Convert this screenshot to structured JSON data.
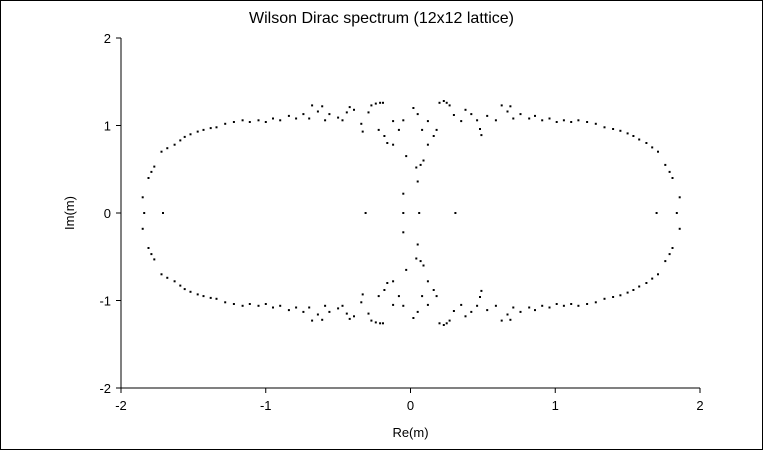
{
  "chart_data": {
    "type": "scatter",
    "title": "Wilson Dirac spectrum (12x12 lattice)",
    "xlabel": "Re(m)",
    "ylabel": "Im(m)",
    "xlim": [
      -2,
      2
    ],
    "ylim": [
      -2,
      2
    ],
    "x_ticks": [
      "-2",
      "-1",
      "0",
      "1",
      "2"
    ],
    "y_ticks": [
      "2",
      "1",
      "0",
      "-1",
      "-2"
    ],
    "grid": false,
    "legend": "none",
    "marker_color": "#000000",
    "series": [
      {
        "points": [
          [
            -1.85,
            0.18
          ],
          [
            -1.84,
            0.0
          ],
          [
            -1.85,
            -0.18
          ],
          [
            -1.81,
            0.4
          ],
          [
            -1.79,
            0.47
          ],
          [
            -1.77,
            0.53
          ],
          [
            -1.72,
            0.7
          ],
          [
            -1.68,
            0.74
          ],
          [
            -1.63,
            0.78
          ],
          [
            -1.59,
            0.83
          ],
          [
            -1.56,
            0.87
          ],
          [
            -1.52,
            0.9
          ],
          [
            -1.47,
            0.93
          ],
          [
            -1.43,
            0.95
          ],
          [
            -1.38,
            0.97
          ],
          [
            -1.34,
            0.98
          ],
          [
            -1.28,
            1.02
          ],
          [
            -1.22,
            1.04
          ],
          [
            -1.16,
            1.06
          ],
          [
            -1.11,
            1.04
          ],
          [
            -1.05,
            1.06
          ],
          [
            -1.0,
            1.04
          ],
          [
            -0.95,
            1.08
          ],
          [
            -0.9,
            1.06
          ],
          [
            -0.84,
            1.11
          ],
          [
            -0.79,
            1.08
          ],
          [
            -0.74,
            1.13
          ],
          [
            -0.7,
            1.08
          ],
          [
            -0.68,
            1.23
          ],
          [
            -0.64,
            1.16
          ],
          [
            -0.61,
            1.22
          ],
          [
            -0.59,
            1.06
          ],
          [
            -0.56,
            1.13
          ],
          [
            -0.5,
            1.09
          ],
          [
            -0.47,
            1.06
          ],
          [
            -0.44,
            1.15
          ],
          [
            -0.42,
            1.21
          ],
          [
            -0.39,
            1.18
          ],
          [
            -0.34,
            1.02
          ],
          [
            -0.33,
            0.93
          ],
          [
            -0.29,
            1.15
          ],
          [
            -0.27,
            1.23
          ],
          [
            -0.24,
            1.25
          ],
          [
            -0.21,
            1.26
          ],
          [
            -0.19,
            1.26
          ],
          [
            -0.22,
            0.95
          ],
          [
            -0.18,
            0.88
          ],
          [
            -0.16,
            0.8
          ],
          [
            -0.12,
            1.05
          ],
          [
            -0.12,
            0.78
          ],
          [
            -0.08,
            0.95
          ],
          [
            -0.05,
            1.06
          ],
          [
            -0.03,
            0.65
          ],
          [
            -1.71,
            0.0
          ],
          [
            -0.31,
            0.0
          ],
          [
            -0.05,
            0.22
          ],
          [
            -0.05,
            0.0
          ],
          [
            -0.05,
            -0.22
          ],
          [
            0.02,
            1.2
          ],
          [
            0.05,
            1.13
          ],
          [
            0.04,
            0.52
          ],
          [
            0.05,
            0.36
          ],
          [
            0.06,
            0.0
          ],
          [
            0.07,
            0.55
          ],
          [
            0.04,
            -0.52
          ],
          [
            0.05,
            -0.36
          ],
          [
            0.07,
            -0.55
          ],
          [
            0.08,
            0.95
          ],
          [
            0.09,
            0.6
          ],
          [
            0.12,
            0.78
          ],
          [
            0.12,
            1.05
          ],
          [
            0.16,
            0.88
          ],
          [
            0.18,
            0.95
          ],
          [
            0.2,
            1.26
          ],
          [
            0.23,
            1.28
          ],
          [
            0.25,
            1.26
          ],
          [
            0.27,
            1.23
          ],
          [
            0.3,
            1.12
          ],
          [
            0.35,
            1.05
          ],
          [
            0.38,
            1.18
          ],
          [
            0.42,
            1.13
          ],
          [
            0.46,
            1.06
          ],
          [
            0.48,
            0.96
          ],
          [
            0.49,
            0.89
          ],
          [
            0.53,
            1.11
          ],
          [
            0.59,
            1.06
          ],
          [
            0.63,
            1.23
          ],
          [
            0.67,
            1.16
          ],
          [
            0.69,
            1.22
          ],
          [
            0.71,
            1.08
          ],
          [
            0.76,
            1.13
          ],
          [
            0.82,
            1.08
          ],
          [
            0.86,
            1.11
          ],
          [
            0.91,
            1.06
          ],
          [
            0.96,
            1.08
          ],
          [
            1.01,
            1.04
          ],
          [
            1.06,
            1.06
          ],
          [
            1.11,
            1.04
          ],
          [
            1.16,
            1.06
          ],
          [
            1.22,
            1.04
          ],
          [
            1.28,
            1.02
          ],
          [
            1.34,
            0.98
          ],
          [
            1.4,
            0.96
          ],
          [
            1.45,
            0.94
          ],
          [
            1.5,
            0.91
          ],
          [
            1.54,
            0.88
          ],
          [
            1.58,
            0.84
          ],
          [
            1.63,
            0.8
          ],
          [
            1.67,
            0.75
          ],
          [
            1.71,
            0.7
          ],
          [
            1.76,
            0.55
          ],
          [
            1.79,
            0.47
          ],
          [
            1.81,
            0.4
          ],
          [
            1.86,
            0.18
          ],
          [
            1.84,
            0.0
          ],
          [
            1.86,
            -0.18
          ],
          [
            1.7,
            0.0
          ],
          [
            0.31,
            0.0
          ],
          [
            -1.81,
            -0.4
          ],
          [
            -1.79,
            -0.47
          ],
          [
            -1.77,
            -0.53
          ],
          [
            -1.72,
            -0.7
          ],
          [
            -1.68,
            -0.74
          ],
          [
            -1.63,
            -0.78
          ],
          [
            -1.59,
            -0.83
          ],
          [
            -1.56,
            -0.87
          ],
          [
            -1.52,
            -0.9
          ],
          [
            -1.47,
            -0.93
          ],
          [
            -1.43,
            -0.95
          ],
          [
            -1.38,
            -0.97
          ],
          [
            -1.34,
            -0.98
          ],
          [
            -1.28,
            -1.02
          ],
          [
            -1.22,
            -1.04
          ],
          [
            -1.16,
            -1.06
          ],
          [
            -1.11,
            -1.04
          ],
          [
            -1.05,
            -1.06
          ],
          [
            -1.0,
            -1.04
          ],
          [
            -0.95,
            -1.08
          ],
          [
            -0.9,
            -1.06
          ],
          [
            -0.84,
            -1.11
          ],
          [
            -0.79,
            -1.08
          ],
          [
            -0.74,
            -1.13
          ],
          [
            -0.7,
            -1.08
          ],
          [
            -0.68,
            -1.23
          ],
          [
            -0.64,
            -1.16
          ],
          [
            -0.61,
            -1.22
          ],
          [
            -0.59,
            -1.06
          ],
          [
            -0.56,
            -1.13
          ],
          [
            -0.5,
            -1.09
          ],
          [
            -0.47,
            -1.06
          ],
          [
            -0.44,
            -1.15
          ],
          [
            -0.42,
            -1.21
          ],
          [
            -0.39,
            -1.18
          ],
          [
            -0.34,
            -1.02
          ],
          [
            -0.33,
            -0.93
          ],
          [
            -0.29,
            -1.15
          ],
          [
            -0.27,
            -1.23
          ],
          [
            -0.24,
            -1.25
          ],
          [
            -0.21,
            -1.26
          ],
          [
            -0.19,
            -1.26
          ],
          [
            -0.22,
            -0.95
          ],
          [
            -0.18,
            -0.88
          ],
          [
            -0.16,
            -0.8
          ],
          [
            -0.12,
            -1.05
          ],
          [
            -0.12,
            -0.78
          ],
          [
            -0.08,
            -0.95
          ],
          [
            -0.05,
            -1.06
          ],
          [
            -0.03,
            -0.65
          ],
          [
            0.02,
            -1.2
          ],
          [
            0.05,
            -1.13
          ],
          [
            0.08,
            -0.95
          ],
          [
            0.09,
            -0.6
          ],
          [
            0.12,
            -0.78
          ],
          [
            0.12,
            -1.05
          ],
          [
            0.16,
            -0.88
          ],
          [
            0.18,
            -0.95
          ],
          [
            0.2,
            -1.26
          ],
          [
            0.23,
            -1.28
          ],
          [
            0.25,
            -1.26
          ],
          [
            0.27,
            -1.23
          ],
          [
            0.3,
            -1.12
          ],
          [
            0.35,
            -1.05
          ],
          [
            0.38,
            -1.18
          ],
          [
            0.42,
            -1.13
          ],
          [
            0.46,
            -1.06
          ],
          [
            0.48,
            -0.96
          ],
          [
            0.49,
            -0.89
          ],
          [
            0.53,
            -1.11
          ],
          [
            0.59,
            -1.06
          ],
          [
            0.63,
            -1.23
          ],
          [
            0.67,
            -1.16
          ],
          [
            0.69,
            -1.22
          ],
          [
            0.71,
            -1.08
          ],
          [
            0.76,
            -1.13
          ],
          [
            0.82,
            -1.08
          ],
          [
            0.86,
            -1.11
          ],
          [
            0.91,
            -1.06
          ],
          [
            0.96,
            -1.08
          ],
          [
            1.01,
            -1.04
          ],
          [
            1.06,
            -1.06
          ],
          [
            1.11,
            -1.04
          ],
          [
            1.16,
            -1.06
          ],
          [
            1.22,
            -1.04
          ],
          [
            1.28,
            -1.02
          ],
          [
            1.34,
            -0.98
          ],
          [
            1.4,
            -0.96
          ],
          [
            1.45,
            -0.94
          ],
          [
            1.5,
            -0.91
          ],
          [
            1.54,
            -0.88
          ],
          [
            1.58,
            -0.84
          ],
          [
            1.63,
            -0.8
          ],
          [
            1.67,
            -0.75
          ],
          [
            1.71,
            -0.7
          ],
          [
            1.76,
            -0.55
          ],
          [
            1.79,
            -0.47
          ],
          [
            1.81,
            -0.4
          ]
        ]
      }
    ]
  }
}
